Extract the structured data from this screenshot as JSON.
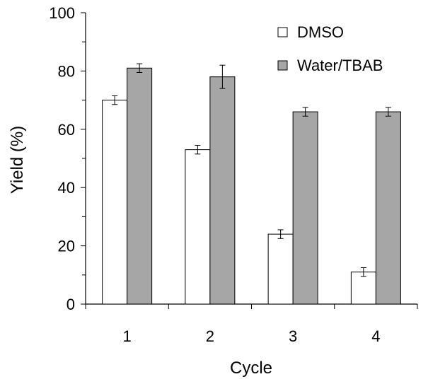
{
  "chart_data": {
    "type": "bar",
    "categories": [
      "1",
      "2",
      "3",
      "4"
    ],
    "series": [
      {
        "name": "DMSO",
        "values": [
          70,
          53,
          24,
          11
        ],
        "errors": [
          1.5,
          1.5,
          1.5,
          1.5
        ],
        "color": "#ffffff"
      },
      {
        "name": "Water/TBAB",
        "values": [
          81,
          78,
          66,
          66
        ],
        "errors": [
          1.5,
          4,
          1.5,
          1.5
        ],
        "color": "#a6a6a6"
      }
    ],
    "xlabel": "Cycle",
    "ylabel": "Yield (%)",
    "ylim": [
      0,
      100
    ],
    "yticks": [
      0,
      20,
      40,
      60,
      80,
      100
    ],
    "legend_position": "top-right",
    "grid": false
  }
}
